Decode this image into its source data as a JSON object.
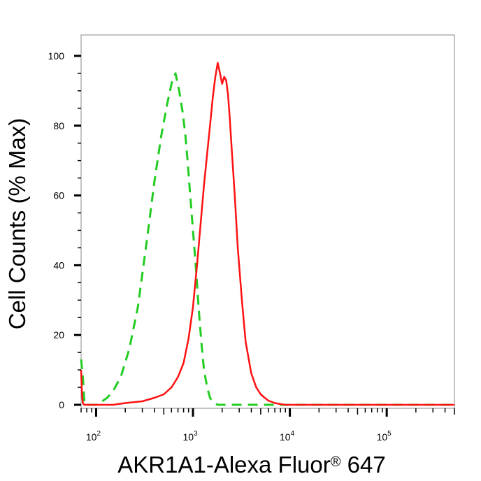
{
  "chart_data": {
    "type": "line",
    "title": "",
    "xlabel": "AKR1A1-Alexa Fluor",
    "xlabel_mark": "®",
    "xlabel_tail": " 647",
    "ylabel": "Cell Counts (% Max)",
    "x_scale": "log",
    "xlim": [
      70,
      500000
    ],
    "ylim": [
      -1,
      106
    ],
    "y_ticks": [
      0,
      20,
      40,
      60,
      80,
      100
    ],
    "y_tick_labels": [
      "0",
      "20",
      "40",
      "60",
      "80",
      "100"
    ],
    "x_ticks": [
      {
        "value": 100,
        "base": "10",
        "exp": "2"
      },
      {
        "value": 1000,
        "base": "10",
        "exp": "3"
      },
      {
        "value": 10000,
        "base": "10",
        "exp": "4"
      },
      {
        "value": 100000,
        "base": "10",
        "exp": "5"
      }
    ],
    "grid": false,
    "legend": "none",
    "series": [
      {
        "color": "#22cc22",
        "style": "dashed",
        "x": [
          70,
          73,
          76,
          80,
          90,
          100,
          115,
          130,
          150,
          180,
          220,
          270,
          330,
          400,
          470,
          540,
          600,
          660,
          720,
          780,
          830,
          880,
          930,
          1000,
          1080,
          1150,
          1220,
          1300,
          1400,
          1500,
          1650,
          1800,
          2000,
          2300,
          2600,
          3000,
          3500,
          4000,
          5000,
          10000,
          100000,
          500000
        ],
        "y": [
          13,
          8,
          0,
          0,
          0,
          0,
          1,
          2,
          4,
          8,
          16,
          28,
          46,
          64,
          77,
          86,
          92,
          95,
          90,
          84,
          78,
          70,
          61,
          50,
          38,
          27,
          18,
          10,
          5,
          2,
          0.5,
          0,
          0,
          0,
          0,
          0,
          0,
          0,
          0,
          0,
          0,
          0
        ]
      },
      {
        "color": "#ff1111",
        "style": "solid",
        "x": [
          70,
          71,
          72,
          73,
          75,
          78,
          80,
          90,
          100,
          150,
          200,
          300,
          400,
          500,
          600,
          700,
          800,
          900,
          1000,
          1100,
          1200,
          1300,
          1400,
          1500,
          1600,
          1700,
          1800,
          1900,
          2000,
          2100,
          2200,
          2300,
          2400,
          2500,
          2700,
          2900,
          3200,
          3500,
          4000,
          4500,
          5000,
          5500,
          6000,
          7000,
          8000,
          9000,
          10000,
          20000,
          100000,
          500000
        ],
        "y": [
          10,
          5,
          2,
          0.5,
          0,
          0,
          0,
          0,
          0,
          0,
          0.5,
          1,
          2,
          3,
          5,
          8,
          12,
          19,
          28,
          40,
          52,
          63,
          72,
          80,
          88,
          94,
          98,
          95,
          92,
          94,
          93,
          89,
          82,
          74,
          60,
          45,
          30,
          18,
          9,
          5,
          3,
          2,
          1.2,
          0.5,
          0.2,
          0,
          0,
          0,
          0,
          0
        ]
      }
    ]
  }
}
